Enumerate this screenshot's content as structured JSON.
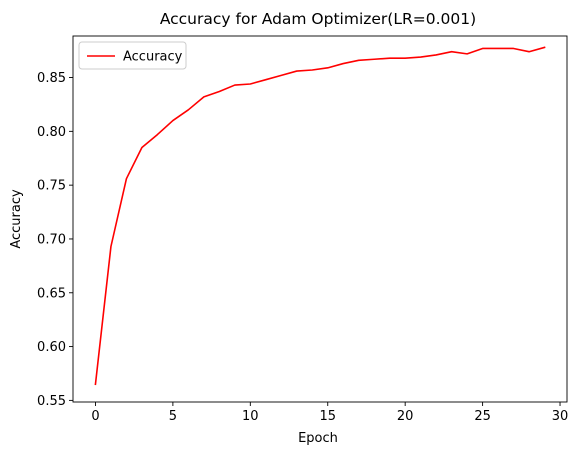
{
  "chart_data": {
    "type": "line",
    "title": "Accuracy for Adam Optimizer(LR=0.001)",
    "xlabel": "Epoch",
    "ylabel": "Accuracy",
    "xlim": [
      -1.45,
      30.45
    ],
    "ylim": [
      0.5485,
      0.8886
    ],
    "xticks": [
      0,
      5,
      10,
      15,
      20,
      25,
      30
    ],
    "yticks": [
      0.55,
      0.6,
      0.65,
      0.7,
      0.75,
      0.8,
      0.85
    ],
    "xtick_labels": [
      "0",
      "5",
      "10",
      "15",
      "20",
      "25",
      "30"
    ],
    "ytick_labels": [
      "0.55",
      "0.60",
      "0.65",
      "0.70",
      "0.75",
      "0.80",
      "0.85"
    ],
    "grid": false,
    "legend_position": "upper-left",
    "series": [
      {
        "name": "Accuracy",
        "color": "#ff0000",
        "x": [
          0,
          1,
          2,
          3,
          4,
          5,
          6,
          7,
          8,
          9,
          10,
          11,
          12,
          13,
          14,
          15,
          16,
          17,
          18,
          19,
          20,
          21,
          22,
          23,
          24,
          25,
          26,
          27,
          28,
          29
        ],
        "values": [
          0.565,
          0.693,
          0.756,
          0.785,
          0.797,
          0.81,
          0.82,
          0.832,
          0.837,
          0.843,
          0.844,
          0.848,
          0.852,
          0.856,
          0.857,
          0.859,
          0.863,
          0.866,
          0.867,
          0.868,
          0.868,
          0.869,
          0.871,
          0.874,
          0.872,
          0.877,
          0.877,
          0.877,
          0.874,
          0.878
        ]
      }
    ]
  }
}
